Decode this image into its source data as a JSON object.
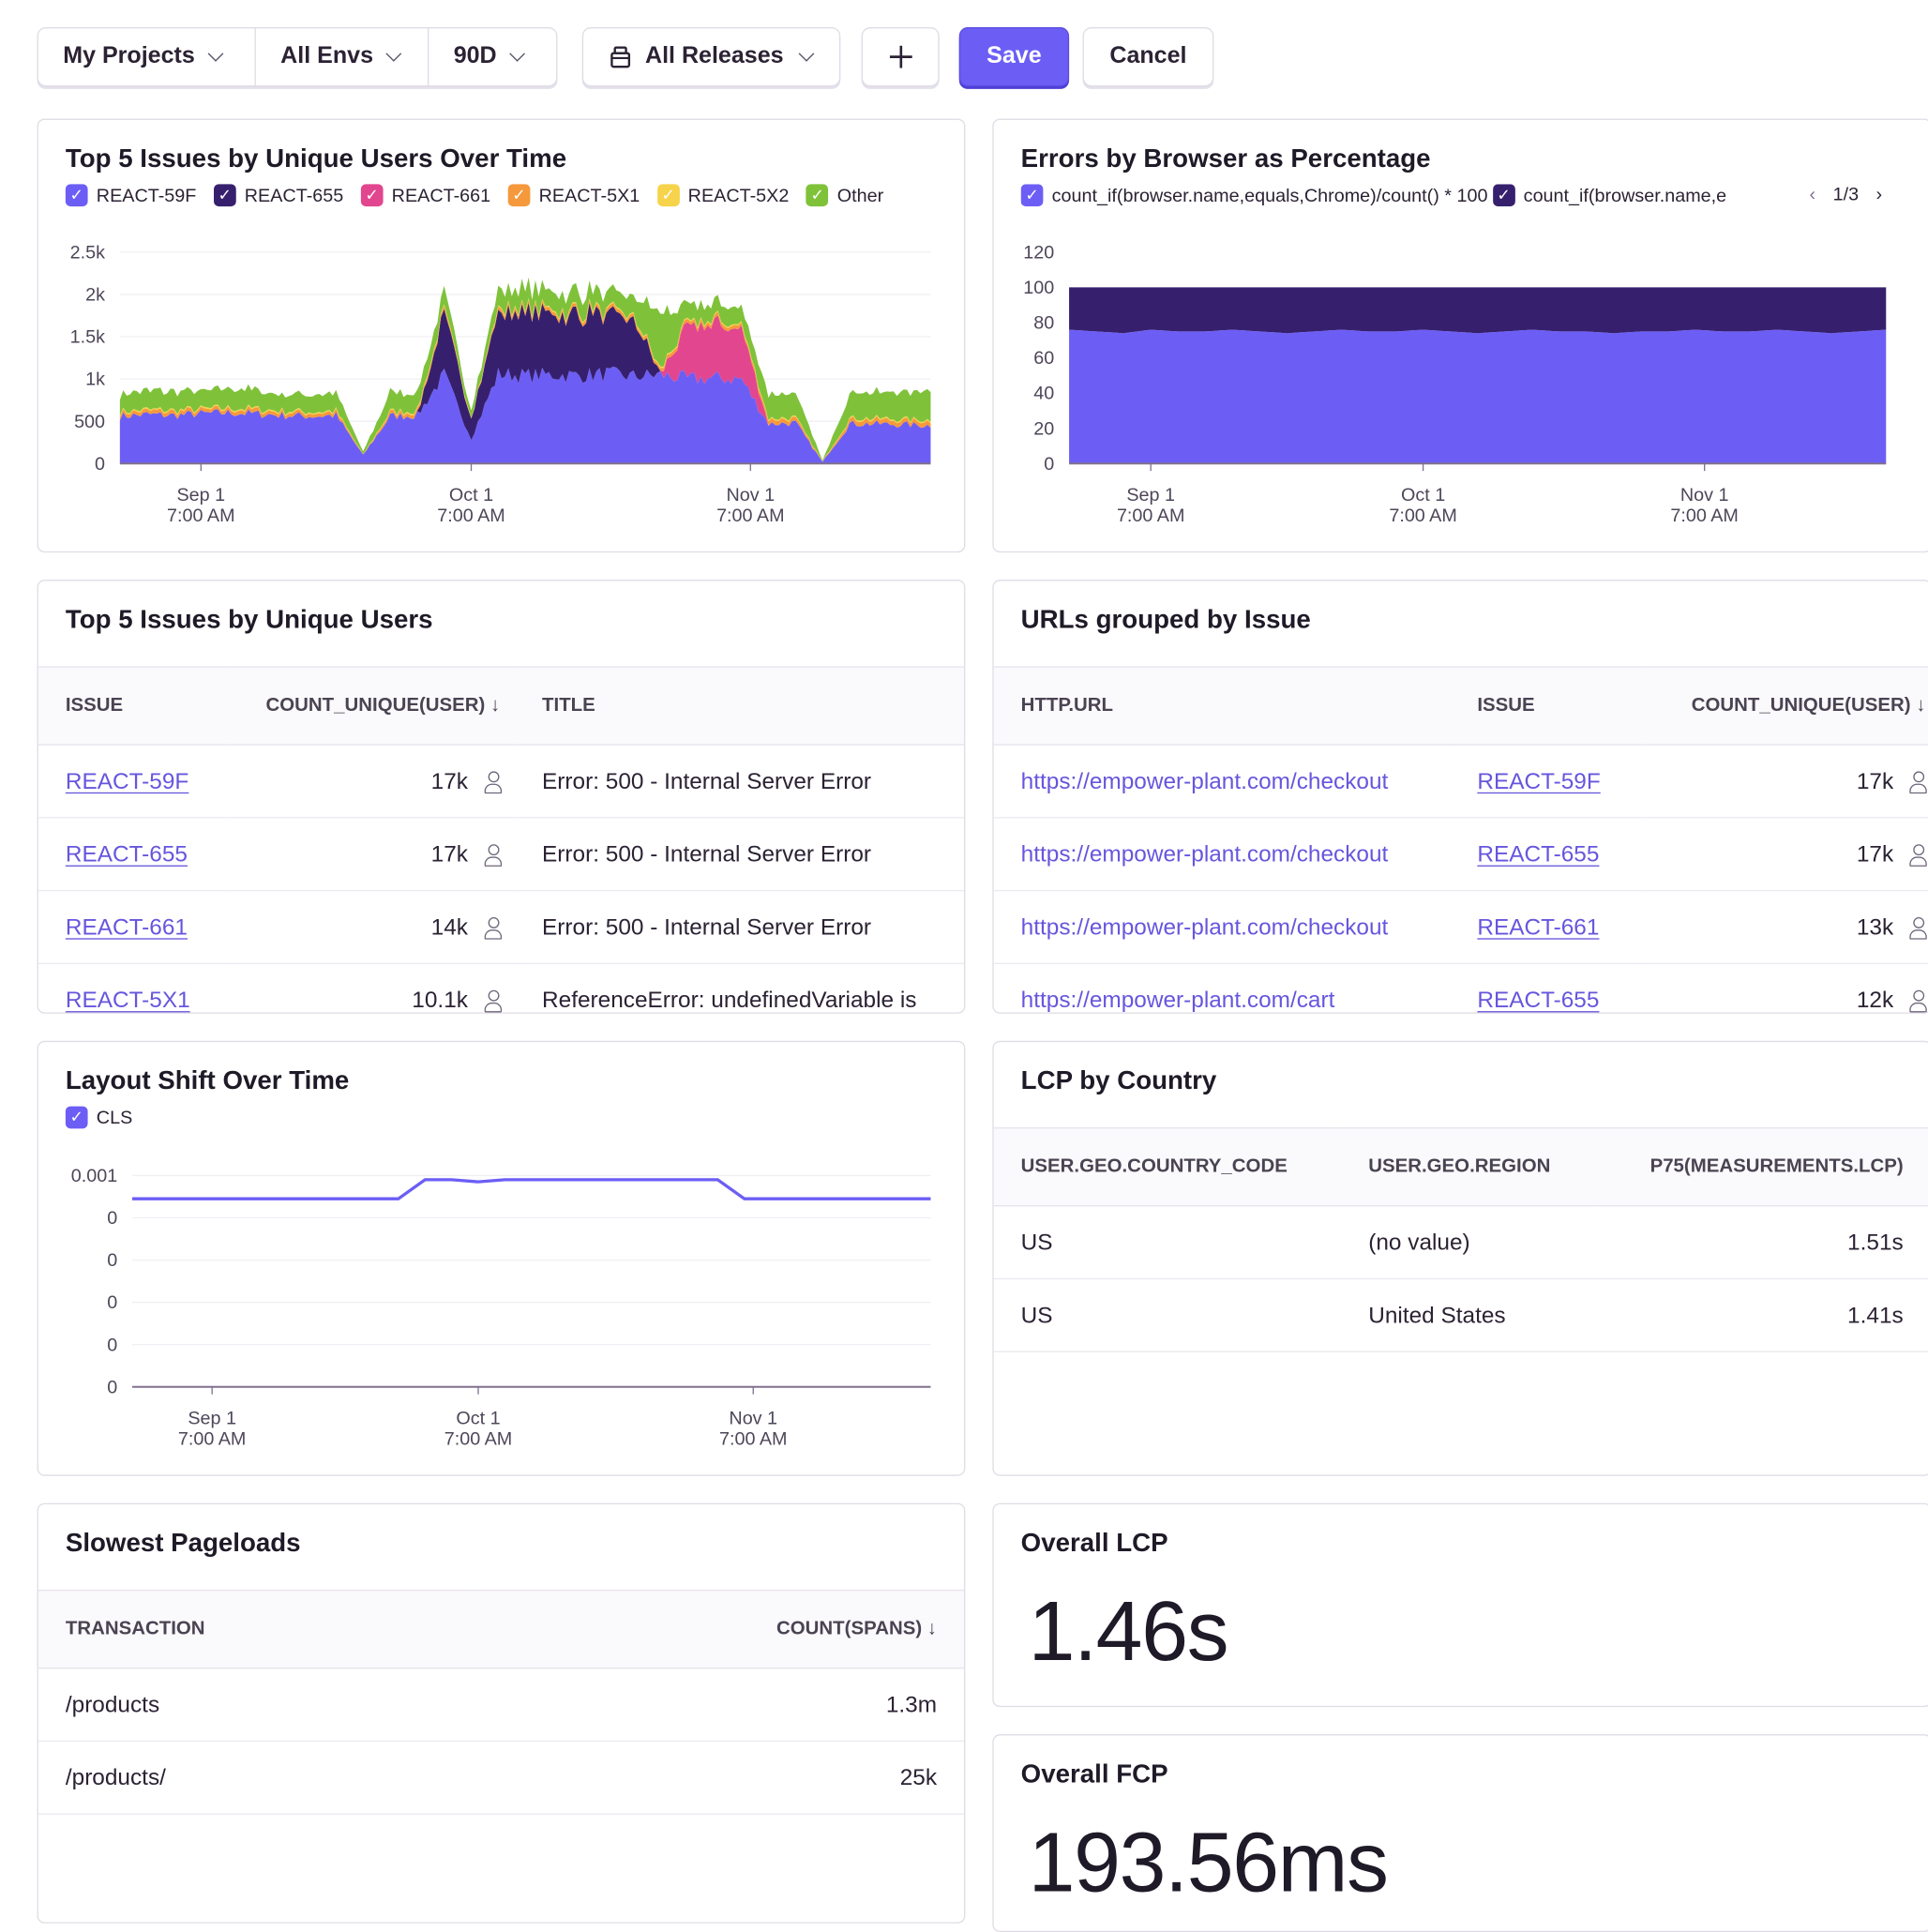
{
  "toolbar": {
    "projects": "My Projects",
    "envs": "All Envs",
    "period": "90D",
    "releases": "All Releases",
    "save": "Save",
    "cancel": "Cancel",
    "add_icon": "plus-icon",
    "release_icon": "package-icon"
  },
  "colors": {
    "accent": "#6c5ef5",
    "link": "#6656dd"
  },
  "widgets": {
    "issues_over_time": {
      "title": "Top 5 Issues by Unique Users Over Time"
    },
    "browser_pct": {
      "title": "Errors by Browser as Percentage",
      "pager": "1/3"
    },
    "top_issues": {
      "title": "Top 5 Issues by Unique Users",
      "columns": [
        "ISSUE",
        "COUNT_UNIQUE(USER) ↓",
        "TITLE"
      ],
      "rows": [
        [
          "REACT-59F",
          "17k",
          "Error: 500 - Internal Server Error"
        ],
        [
          "REACT-655",
          "17k",
          "Error: 500 - Internal Server Error"
        ],
        [
          "REACT-661",
          "14k",
          "Error: 500 - Internal Server Error"
        ],
        [
          "REACT-5X1",
          "10.1k",
          "ReferenceError: undefinedVariable is"
        ]
      ]
    },
    "urls": {
      "title": "URLs grouped by Issue",
      "columns": [
        "HTTP.URL",
        "ISSUE",
        "COUNT_UNIQUE(USER) ↓"
      ],
      "rows": [
        [
          "https://empower-plant.com/checkout",
          "REACT-59F",
          "17k"
        ],
        [
          "https://empower-plant.com/checkout",
          "REACT-655",
          "17k"
        ],
        [
          "https://empower-plant.com/checkout",
          "REACT-661",
          "13k"
        ],
        [
          "https://empower-plant.com/cart",
          "REACT-655",
          "12k"
        ]
      ]
    },
    "layout_shift": {
      "title": "Layout Shift Over Time"
    },
    "lcp_country": {
      "title": "LCP by Country",
      "columns": [
        "USER.GEO.COUNTRY_CODE",
        "USER.GEO.REGION",
        "P75(MEASUREMENTS.LCP)"
      ],
      "rows": [
        [
          "US",
          "(no value)",
          "1.51s"
        ],
        [
          "US",
          "United States",
          "1.41s"
        ]
      ]
    },
    "slowest": {
      "title": "Slowest Pageloads",
      "columns": [
        "TRANSACTION",
        "COUNT(SPANS) ↓"
      ],
      "rows": [
        [
          "/products",
          "1.3m"
        ],
        [
          "/products/",
          "25k"
        ]
      ]
    },
    "overall_lcp": {
      "title": "Overall LCP",
      "value": "1.46s"
    },
    "overall_fcp": {
      "title": "Overall FCP",
      "value": "193.56ms"
    }
  },
  "chart_data": [
    {
      "type": "area",
      "stacked": true,
      "title": "Top 5 Issues by Unique Users Over Time",
      "x": [
        "2024-08-23",
        "2024-08-26",
        "2024-08-29",
        "2024-09-01",
        "2024-09-04",
        "2024-09-07",
        "2024-09-10",
        "2024-09-13",
        "2024-09-16",
        "2024-09-19",
        "2024-09-22",
        "2024-09-25",
        "2024-09-28",
        "2024-10-01",
        "2024-10-04",
        "2024-10-07",
        "2024-10-10",
        "2024-10-13",
        "2024-10-16",
        "2024-10-19",
        "2024-10-22",
        "2024-10-25",
        "2024-10-28",
        "2024-10-31",
        "2024-11-03",
        "2024-11-06",
        "2024-11-09",
        "2024-11-12",
        "2024-11-15",
        "2024-11-18",
        "2024-11-21"
      ],
      "xticks": [
        {
          "date": "2024-09-01",
          "label": [
            "Sep 1",
            "7:00 AM"
          ]
        },
        {
          "date": "2024-10-01",
          "label": [
            "Oct 1",
            "7:00 AM"
          ]
        },
        {
          "date": "2024-11-01",
          "label": [
            "Nov 1",
            "7:00 AM"
          ]
        }
      ],
      "yticks": [
        {
          "v": 0,
          "label": "0"
        },
        {
          "v": 500,
          "label": "500"
        },
        {
          "v": 1000,
          "label": "1k"
        },
        {
          "v": 1500,
          "label": "1.5k"
        },
        {
          "v": 2000,
          "label": "2k"
        },
        {
          "v": 2500,
          "label": "2.5k"
        }
      ],
      "ylim": [
        0,
        2500
      ],
      "grid": true,
      "legend": "top-left",
      "series": [
        {
          "name": "REACT-59F",
          "color": "#6c5ef5",
          "values": [
            560,
            580,
            570,
            590,
            600,
            590,
            570,
            560,
            570,
            100,
            560,
            570,
            1050,
            300,
            1060,
            1040,
            1050,
            1040,
            1060,
            1030,
            1050,
            1000,
            1010,
            1000,
            470,
            480,
            20,
            470,
            470,
            460,
            450
          ]
        },
        {
          "name": "REACT-655",
          "color": "#36206e",
          "values": [
            0,
            0,
            0,
            0,
            0,
            0,
            0,
            0,
            0,
            0,
            0,
            0,
            700,
            250,
            720,
            730,
            700,
            720,
            710,
            700,
            0,
            0,
            0,
            0,
            0,
            0,
            0,
            0,
            0,
            0,
            0
          ]
        },
        {
          "name": "REACT-661",
          "color": "#e1468f",
          "values": [
            0,
            0,
            0,
            0,
            0,
            0,
            0,
            0,
            0,
            0,
            0,
            0,
            0,
            0,
            0,
            0,
            0,
            0,
            0,
            0,
            0,
            620,
            610,
            600,
            0,
            0,
            0,
            0,
            0,
            0,
            0
          ]
        },
        {
          "name": "REACT-5X1",
          "color": "#f5993c",
          "values": [
            40,
            40,
            45,
            40,
            40,
            45,
            40,
            40,
            40,
            5,
            40,
            40,
            40,
            10,
            40,
            40,
            40,
            40,
            40,
            40,
            40,
            40,
            40,
            40,
            50,
            50,
            5,
            50,
            50,
            50,
            50
          ]
        },
        {
          "name": "REACT-5X2",
          "color": "#f6d34a",
          "values": [
            15,
            15,
            15,
            15,
            15,
            15,
            15,
            15,
            15,
            2,
            15,
            15,
            15,
            5,
            15,
            15,
            15,
            15,
            15,
            15,
            15,
            15,
            15,
            15,
            15,
            15,
            2,
            15,
            15,
            15,
            15
          ]
        },
        {
          "name": "Other",
          "color": "#7fc23a",
          "values": [
            200,
            220,
            230,
            210,
            230,
            220,
            190,
            200,
            210,
            30,
            230,
            220,
            200,
            80,
            220,
            230,
            210,
            220,
            200,
            220,
            650,
            180,
            200,
            190,
            280,
            290,
            10,
            300,
            320,
            330,
            340
          ]
        }
      ]
    },
    {
      "type": "area",
      "stacked": true,
      "title": "Errors by Browser as Percentage",
      "x": [
        "2024-08-23",
        "2024-08-26",
        "2024-08-29",
        "2024-09-01",
        "2024-09-04",
        "2024-09-07",
        "2024-09-10",
        "2024-09-13",
        "2024-09-16",
        "2024-09-19",
        "2024-09-22",
        "2024-09-25",
        "2024-09-28",
        "2024-10-01",
        "2024-10-04",
        "2024-10-07",
        "2024-10-10",
        "2024-10-13",
        "2024-10-16",
        "2024-10-19",
        "2024-10-22",
        "2024-10-25",
        "2024-10-28",
        "2024-10-31",
        "2024-11-03",
        "2024-11-06",
        "2024-11-09",
        "2024-11-12",
        "2024-11-15",
        "2024-11-18",
        "2024-11-21"
      ],
      "xticks": [
        {
          "date": "2024-09-01",
          "label": [
            "Sep 1",
            "7:00 AM"
          ]
        },
        {
          "date": "2024-10-01",
          "label": [
            "Oct 1",
            "7:00 AM"
          ]
        },
        {
          "date": "2024-11-01",
          "label": [
            "Nov 1",
            "7:00 AM"
          ]
        }
      ],
      "yticks": [
        {
          "v": 0,
          "label": "0"
        },
        {
          "v": 20,
          "label": "20"
        },
        {
          "v": 40,
          "label": "40"
        },
        {
          "v": 60,
          "label": "60"
        },
        {
          "v": 80,
          "label": "80"
        },
        {
          "v": 100,
          "label": "100"
        },
        {
          "v": 120,
          "label": "120"
        }
      ],
      "ylim": [
        0,
        120
      ],
      "grid": false,
      "legend": "top-left",
      "series": [
        {
          "name": "count_if(browser.name,equals,Chrome)/count() * 100",
          "color": "#6c5ef5",
          "values": [
            76,
            75,
            74,
            76,
            75,
            75,
            76,
            75,
            74,
            75,
            76,
            75,
            75,
            76,
            75,
            74,
            75,
            76,
            75,
            75,
            74,
            75,
            75,
            76,
            75,
            75,
            76,
            75,
            74,
            75,
            76
          ]
        },
        {
          "name": "count_if(browser.name,e",
          "color": "#36206e",
          "values": [
            24,
            25,
            26,
            24,
            25,
            25,
            24,
            25,
            26,
            25,
            24,
            25,
            25,
            24,
            25,
            26,
            25,
            24,
            25,
            25,
            26,
            25,
            25,
            24,
            25,
            25,
            24,
            25,
            26,
            25,
            24
          ]
        }
      ]
    },
    {
      "type": "line",
      "title": "Layout Shift Over Time",
      "x": [
        "2024-08-23",
        "2024-08-26",
        "2024-08-29",
        "2024-09-01",
        "2024-09-04",
        "2024-09-07",
        "2024-09-10",
        "2024-09-13",
        "2024-09-16",
        "2024-09-19",
        "2024-09-22",
        "2024-09-25",
        "2024-09-28",
        "2024-10-01",
        "2024-10-04",
        "2024-10-07",
        "2024-10-10",
        "2024-10-13",
        "2024-10-16",
        "2024-10-19",
        "2024-10-22",
        "2024-10-25",
        "2024-10-28",
        "2024-10-31",
        "2024-11-03",
        "2024-11-06",
        "2024-11-09",
        "2024-11-12",
        "2024-11-15",
        "2024-11-18",
        "2024-11-21"
      ],
      "xticks": [
        {
          "date": "2024-09-01",
          "label": [
            "Sep 1",
            "7:00 AM"
          ]
        },
        {
          "date": "2024-10-01",
          "label": [
            "Oct 1",
            "7:00 AM"
          ]
        },
        {
          "date": "2024-11-01",
          "label": [
            "Nov 1",
            "7:00 AM"
          ]
        }
      ],
      "yticks": [
        {
          "v": 0,
          "label": "0"
        },
        {
          "v": 0.0002,
          "label": "0"
        },
        {
          "v": 0.0004,
          "label": "0"
        },
        {
          "v": 0.0006,
          "label": "0"
        },
        {
          "v": 0.0008,
          "label": "0"
        },
        {
          "v": 0.001,
          "label": "0.001"
        }
      ],
      "ylim": [
        0,
        0.001
      ],
      "grid": true,
      "legend": "top-left",
      "series": [
        {
          "name": "CLS",
          "color": "#6c5ef5",
          "values": [
            0.00089,
            0.00089,
            0.00089,
            0.00089,
            0.00089,
            0.00089,
            0.00089,
            0.00089,
            0.00089,
            0.00089,
            0.00089,
            0.00098,
            0.00098,
            0.00097,
            0.00098,
            0.00098,
            0.00098,
            0.00098,
            0.00098,
            0.00098,
            0.00098,
            0.00098,
            0.00098,
            0.00089,
            0.00089,
            0.00089,
            0.00089,
            0.00089,
            0.00089,
            0.00089,
            0.00089
          ]
        }
      ]
    }
  ]
}
